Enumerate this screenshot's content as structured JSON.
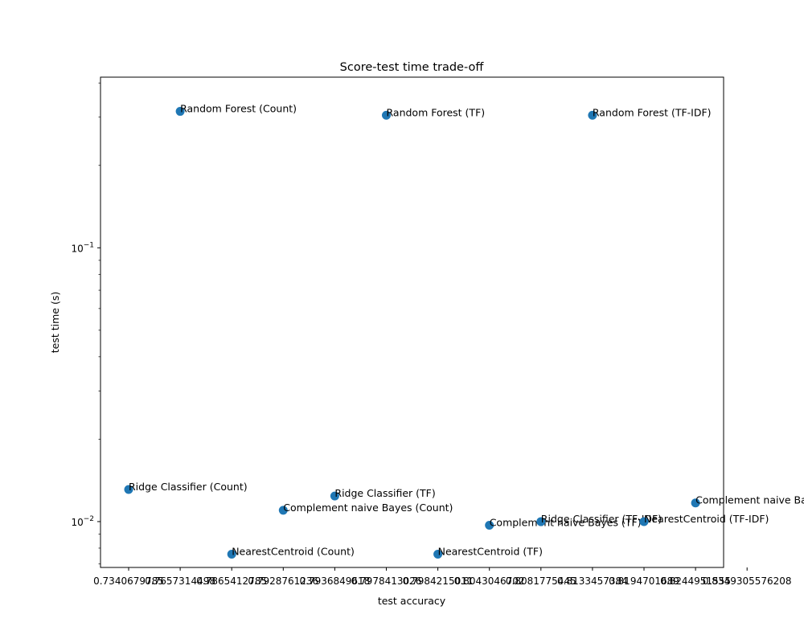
{
  "chart_data": {
    "type": "scatter",
    "title": "Score-test time trade-off",
    "xlabel": "test accuracy",
    "ylabel": "test time (s)",
    "yscale": "log",
    "ylim": [
      0.0068,
      0.42
    ],
    "grid": false,
    "marker_color": "#1f77b4",
    "x_tick_labels": [
      "0.7340679785",
      "0.7657314498",
      "0.7865412785",
      "0.7928761236",
      "0.7936849618",
      "0.7978413026",
      "0.7984215011",
      "0.8043046702",
      "0.8081775445",
      "0.8133457384",
      "0.8194701689",
      "0.8244951555",
      "0.8349305576208"
    ],
    "y_tick_labels": [
      "10−2",
      "10−1"
    ],
    "y_ticks": [
      0.01,
      0.1
    ],
    "points": [
      {
        "label": "Ridge Classifier (Count)",
        "x_index": 0,
        "y": 0.0131
      },
      {
        "label": "Random Forest (Count)",
        "x_index": 1,
        "y": 0.315
      },
      {
        "label": "NearestCentroid (Count)",
        "x_index": 2,
        "y": 0.0076
      },
      {
        "label": "Complement naive Bayes (Count)",
        "x_index": 3,
        "y": 0.011
      },
      {
        "label": "Ridge Classifier (TF)",
        "x_index": 4,
        "y": 0.0124
      },
      {
        "label": "Random Forest (TF)",
        "x_index": 5,
        "y": 0.305
      },
      {
        "label": "NearestCentroid (TF)",
        "x_index": 6,
        "y": 0.0076
      },
      {
        "label": "Complement naive Bayes (TF)",
        "x_index": 7,
        "y": 0.0097
      },
      {
        "label": "Ridge Classifier (TF-IDF)",
        "x_index": 8,
        "y": 0.01
      },
      {
        "label": "Random Forest (TF-IDF)",
        "x_index": 9,
        "y": 0.305
      },
      {
        "label": "NearestCentroid (TF-IDF)",
        "x_index": 10,
        "y": 0.01
      },
      {
        "label": "Complement naive Bayes (TF-IDF)",
        "x_index": 11,
        "y": 0.0117
      }
    ]
  }
}
